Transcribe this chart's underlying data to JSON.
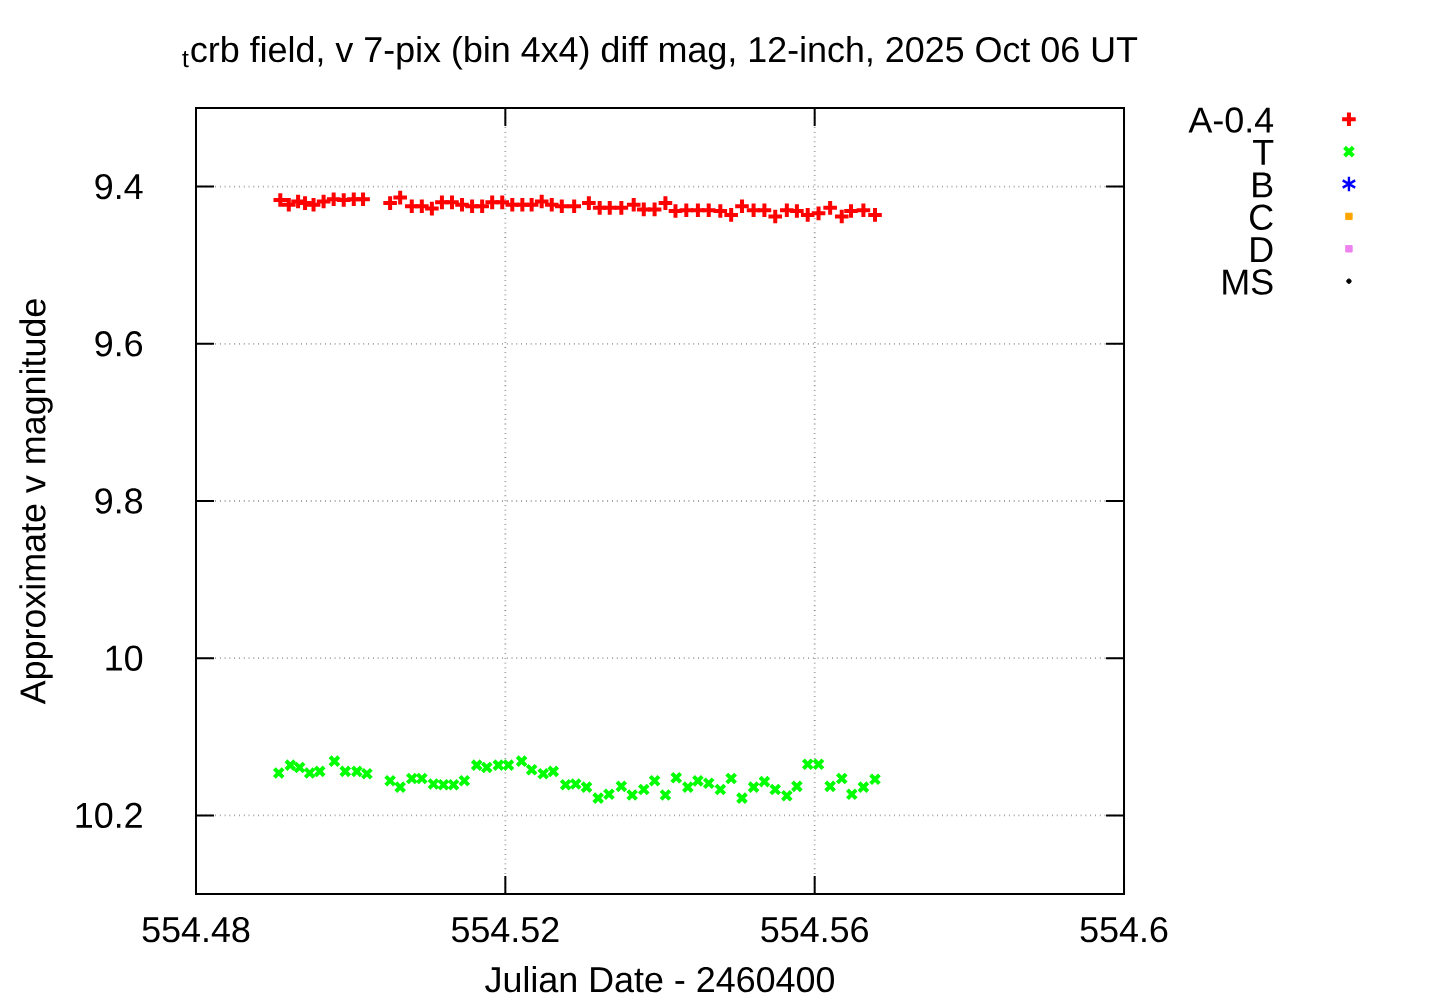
{
  "chart_data": {
    "type": "scatter",
    "title": "$_{t}$crb field, v 7-pix (bin 4x4) diff mag, 12-inch, 2025 Oct 06 UT",
    "xlabel": "Julian Date - 2460400",
    "ylabel": "Approximate v magnitude",
    "xlim": [
      554.48,
      554.6
    ],
    "xticks": [
      554.48,
      554.52,
      554.56,
      554.6
    ],
    "ylim": [
      10.3,
      9.3
    ],
    "yticks": [
      9.4,
      9.6,
      9.8,
      10,
      10.2
    ],
    "grid": true,
    "legend": "top right",
    "series": [
      {
        "name": "A-0.4",
        "color": "#ff0000",
        "marker": "plus",
        "x": [
          554.4909,
          554.492,
          554.4932,
          554.4941,
          554.4952,
          554.4965,
          554.4978,
          554.4991,
          554.5004,
          554.5016,
          554.5051,
          554.5064,
          554.5079,
          554.5092,
          554.5105,
          554.5118,
          554.5131,
          554.5144,
          554.5157,
          554.517,
          554.5183,
          554.5196,
          554.5209,
          554.5222,
          554.5234,
          554.5247,
          554.526,
          554.5273,
          554.5289,
          554.5308,
          554.5322,
          554.5335,
          554.535,
          554.5366,
          554.5379,
          554.5393,
          554.5407,
          554.542,
          554.5434,
          554.5449,
          554.5463,
          554.5478,
          554.5492,
          554.5506,
          554.5521,
          554.5535,
          554.5549,
          554.5564,
          554.5577,
          554.5591,
          554.5605,
          554.562,
          554.5635,
          554.5647,
          554.5663,
          554.5678
        ],
        "values": [
          9.417,
          9.423,
          9.419,
          9.421,
          9.423,
          9.419,
          9.416,
          9.417,
          9.416,
          9.416,
          9.421,
          9.414,
          9.425,
          9.425,
          9.428,
          9.42,
          9.42,
          9.423,
          9.425,
          9.425,
          9.42,
          9.42,
          9.423,
          9.423,
          9.423,
          9.419,
          9.423,
          9.425,
          9.425,
          9.421,
          9.427,
          9.427,
          9.427,
          9.423,
          9.429,
          9.429,
          9.421,
          9.431,
          9.43,
          9.43,
          9.43,
          9.431,
          9.436,
          9.425,
          9.43,
          9.43,
          9.438,
          9.43,
          9.431,
          9.436,
          9.434,
          9.427,
          9.438,
          9.431,
          9.43,
          9.436
        ]
      },
      {
        "name": "T",
        "color": "#00ff00",
        "marker": "cross",
        "x": [
          554.4907,
          554.4922,
          554.4934,
          554.4947,
          554.496,
          554.4979,
          554.4993,
          554.5008,
          554.5021,
          554.5051,
          554.5064,
          554.5079,
          554.5092,
          554.5107,
          554.512,
          554.5133,
          554.5147,
          554.5163,
          554.5176,
          554.5191,
          554.5204,
          554.5221,
          554.5234,
          554.5249,
          554.5262,
          554.5278,
          554.5291,
          554.5305,
          554.532,
          554.5334,
          554.535,
          554.5364,
          554.5379,
          554.5393,
          554.5407,
          554.5421,
          554.5436,
          554.5449,
          554.5463,
          554.5478,
          554.5492,
          554.5506,
          554.5521,
          554.5535,
          554.5549,
          554.5564,
          554.5577,
          554.5591,
          554.5605,
          554.562,
          554.5635,
          554.5648,
          554.5663,
          554.5678
        ],
        "values": [
          10.146,
          10.136,
          10.139,
          10.146,
          10.144,
          10.131,
          10.144,
          10.144,
          10.147,
          10.156,
          10.164,
          10.153,
          10.153,
          10.16,
          10.161,
          10.161,
          10.156,
          10.136,
          10.139,
          10.136,
          10.136,
          10.131,
          10.142,
          10.147,
          10.144,
          10.161,
          10.16,
          10.164,
          10.178,
          10.173,
          10.163,
          10.174,
          10.167,
          10.156,
          10.174,
          10.152,
          10.164,
          10.156,
          10.159,
          10.167,
          10.153,
          10.178,
          10.164,
          10.157,
          10.167,
          10.175,
          10.163,
          10.135,
          10.135,
          10.163,
          10.153,
          10.173,
          10.164,
          10.154
        ]
      },
      {
        "name": "B",
        "color": "#0000ff",
        "marker": "star"
      },
      {
        "name": "C",
        "color": "#ffa500",
        "marker": "square"
      },
      {
        "name": "D",
        "color": "#ee82ee",
        "marker": "square"
      },
      {
        "name": "MS",
        "color": "#000000",
        "marker": "circle"
      }
    ]
  }
}
